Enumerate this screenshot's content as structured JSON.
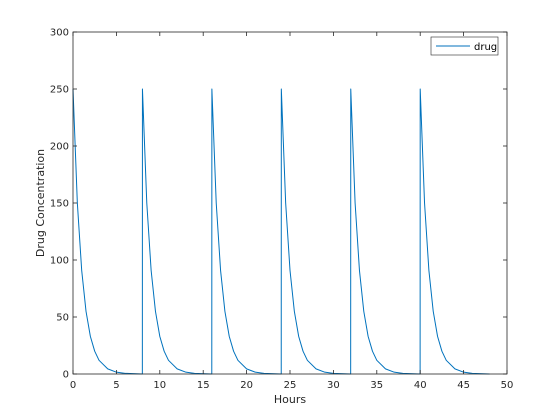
{
  "chart_data": {
    "type": "line",
    "title": "",
    "xlabel": "Hours",
    "ylabel": "Drug Concentration",
    "xlim": [
      0,
      50
    ],
    "ylim": [
      0,
      300
    ],
    "xticks": [
      0,
      5,
      10,
      15,
      20,
      25,
      30,
      35,
      40,
      45,
      50
    ],
    "yticks": [
      0,
      50,
      100,
      150,
      200,
      250,
      300
    ],
    "grid": false,
    "legend_placement": "top-right",
    "series": [
      {
        "name": "drug",
        "color": "#0072BD",
        "x": [
          0,
          0.5,
          1,
          1.5,
          2,
          2.5,
          3,
          4,
          5,
          6,
          7.99,
          8,
          8.5,
          9,
          9.5,
          10,
          10.5,
          11,
          12,
          13,
          14,
          15.99,
          16,
          16.5,
          17,
          17.5,
          18,
          18.5,
          19,
          20,
          21,
          22,
          23.99,
          24,
          24.5,
          25,
          25.5,
          26,
          26.5,
          27,
          28,
          29,
          30,
          31.99,
          32,
          32.5,
          33,
          33.5,
          34,
          34.5,
          35,
          36,
          37,
          38,
          39.99,
          40,
          40.5,
          41,
          41.5,
          42,
          42.5,
          43,
          44,
          45,
          46,
          48
        ],
        "values": [
          250,
          150,
          91,
          55,
          33,
          20,
          12,
          4.5,
          1.6,
          0.6,
          0,
          250,
          150,
          91,
          55,
          33,
          20,
          12,
          4.5,
          1.6,
          0.6,
          0,
          250,
          150,
          91,
          55,
          33,
          20,
          12,
          4.5,
          1.6,
          0.6,
          0,
          250,
          150,
          91,
          55,
          33,
          20,
          12,
          4.5,
          1.6,
          0.6,
          0,
          250,
          150,
          91,
          55,
          33,
          20,
          12,
          4.5,
          1.6,
          0.6,
          0,
          250,
          150,
          91,
          55,
          33,
          20,
          12,
          4.5,
          1.6,
          0.6,
          0
        ]
      }
    ]
  }
}
